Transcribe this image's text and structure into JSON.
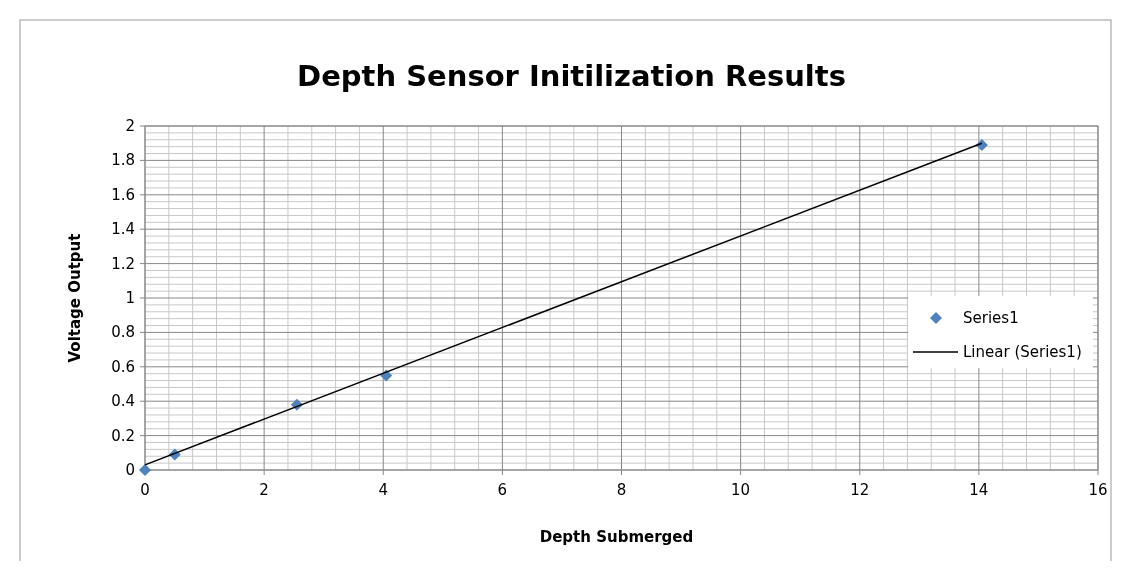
{
  "chart_data": {
    "type": "scatter",
    "title": "Depth Sensor Initilization Results",
    "xlabel": "Depth Submerged",
    "ylabel": "Voltage Output",
    "xlim": [
      0,
      16
    ],
    "xticks": [
      0,
      2,
      4,
      6,
      8,
      10,
      12,
      14,
      16
    ],
    "ylim": [
      0,
      2
    ],
    "yticks": [
      0,
      0.2,
      0.4,
      0.6,
      0.8,
      1,
      1.2,
      1.4,
      1.6,
      1.8,
      2
    ],
    "grid": true,
    "legend": "right",
    "series": [
      {
        "name": "Series1",
        "marker": "diamond",
        "color": "#4f81bd",
        "x": [
          0,
          0.5,
          2.55,
          4.05,
          14.05
        ],
        "values": [
          0,
          0.09,
          0.38,
          0.55,
          1.89
        ]
      },
      {
        "name": "Linear (Series1)",
        "type": "line",
        "color": "#000000",
        "x": [
          0,
          14.05
        ],
        "values": [
          0.03,
          1.9
        ],
        "line_style": "solid",
        "marker": "none"
      }
    ]
  }
}
